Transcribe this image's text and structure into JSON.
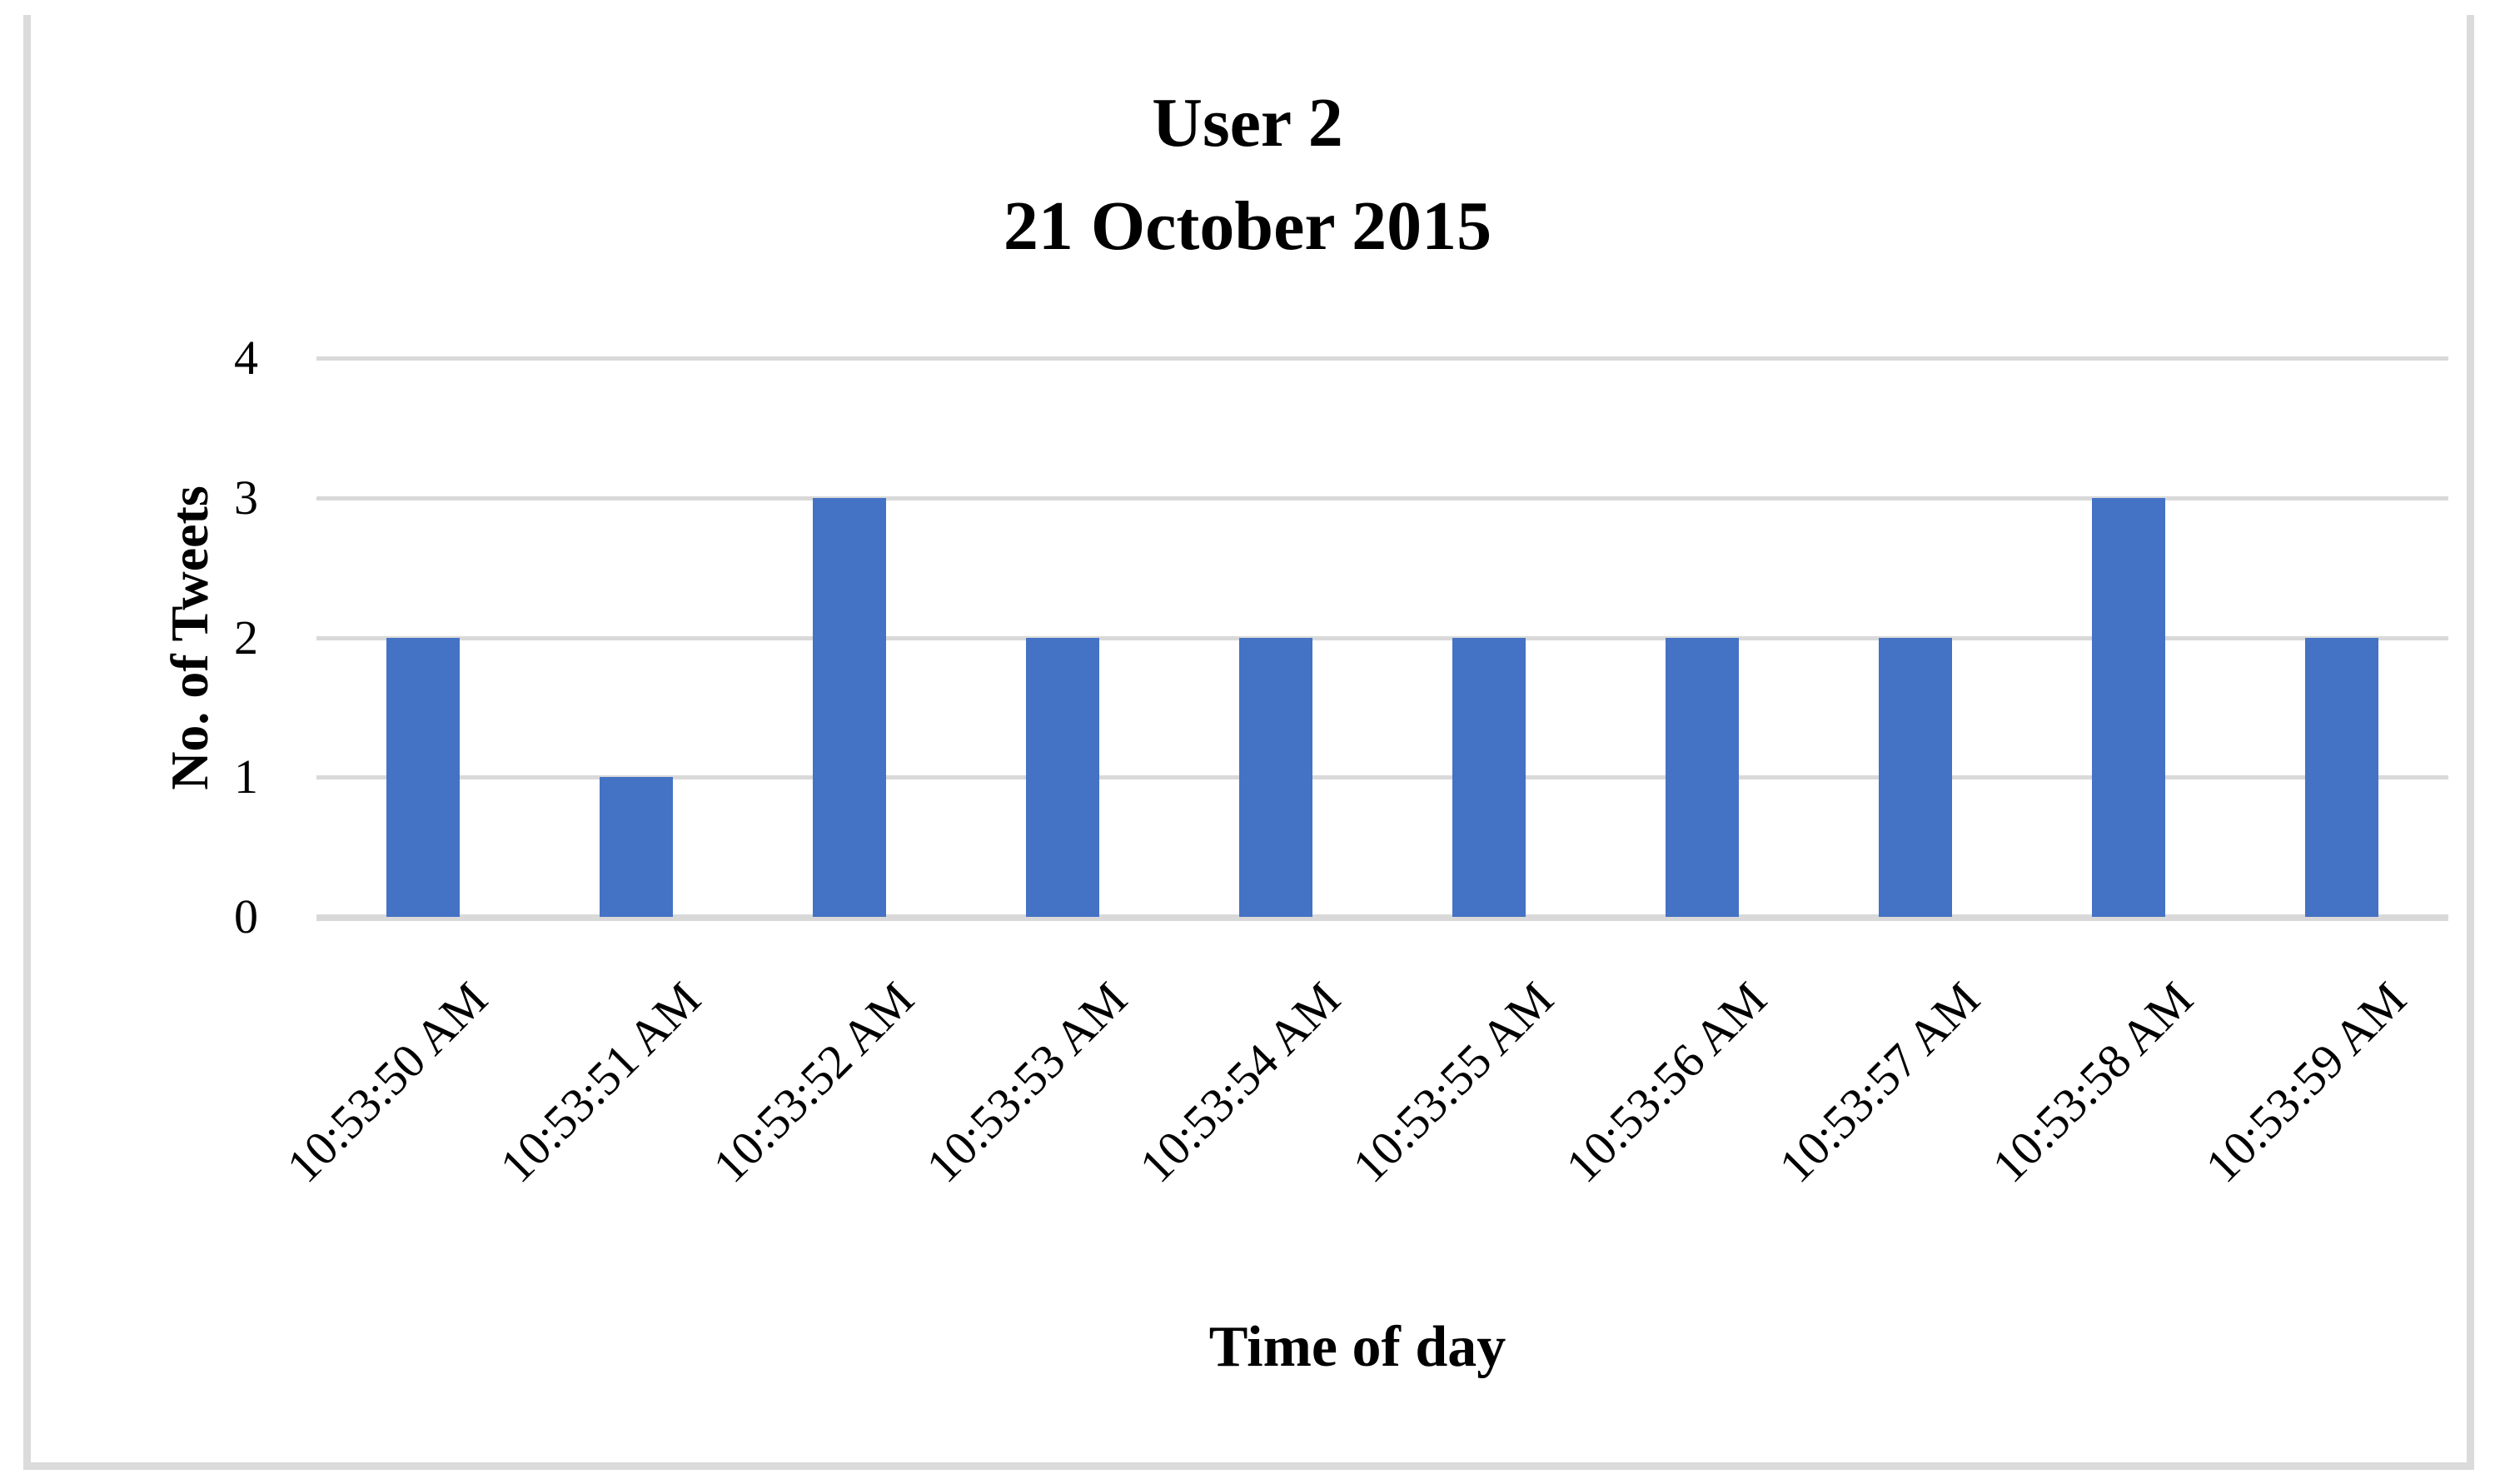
{
  "figure": {
    "title_line1": "User 2",
    "title_line2": "21 October 2015"
  },
  "chart_data": {
    "type": "bar",
    "title": "User 2 — 21 October 2015",
    "categories": [
      "10:53:50 AM",
      "10:53:51 AM",
      "10:53:52 AM",
      "10:53:53 AM",
      "10:53:54 AM",
      "10:53:55 AM",
      "10:53:56 AM",
      "10:53:57 AM",
      "10:53:58 AM",
      "10:53:59 AM"
    ],
    "values": [
      2,
      1,
      3,
      2,
      2,
      2,
      2,
      2,
      3,
      2
    ],
    "xlabel": "Time of day",
    "ylabel": "No. of Tweets",
    "yticks": [
      0,
      1,
      2,
      3,
      4
    ],
    "ylim": [
      0,
      4
    ],
    "grid": true,
    "legend_position": "none",
    "x_tick_rotation_deg": 45,
    "colors": {
      "bar": "#4472c4",
      "gridline": "#d9d9d9",
      "axis_line": "#d9d9d9",
      "figure_border": "#dbdbdb",
      "text": "#000000"
    }
  }
}
